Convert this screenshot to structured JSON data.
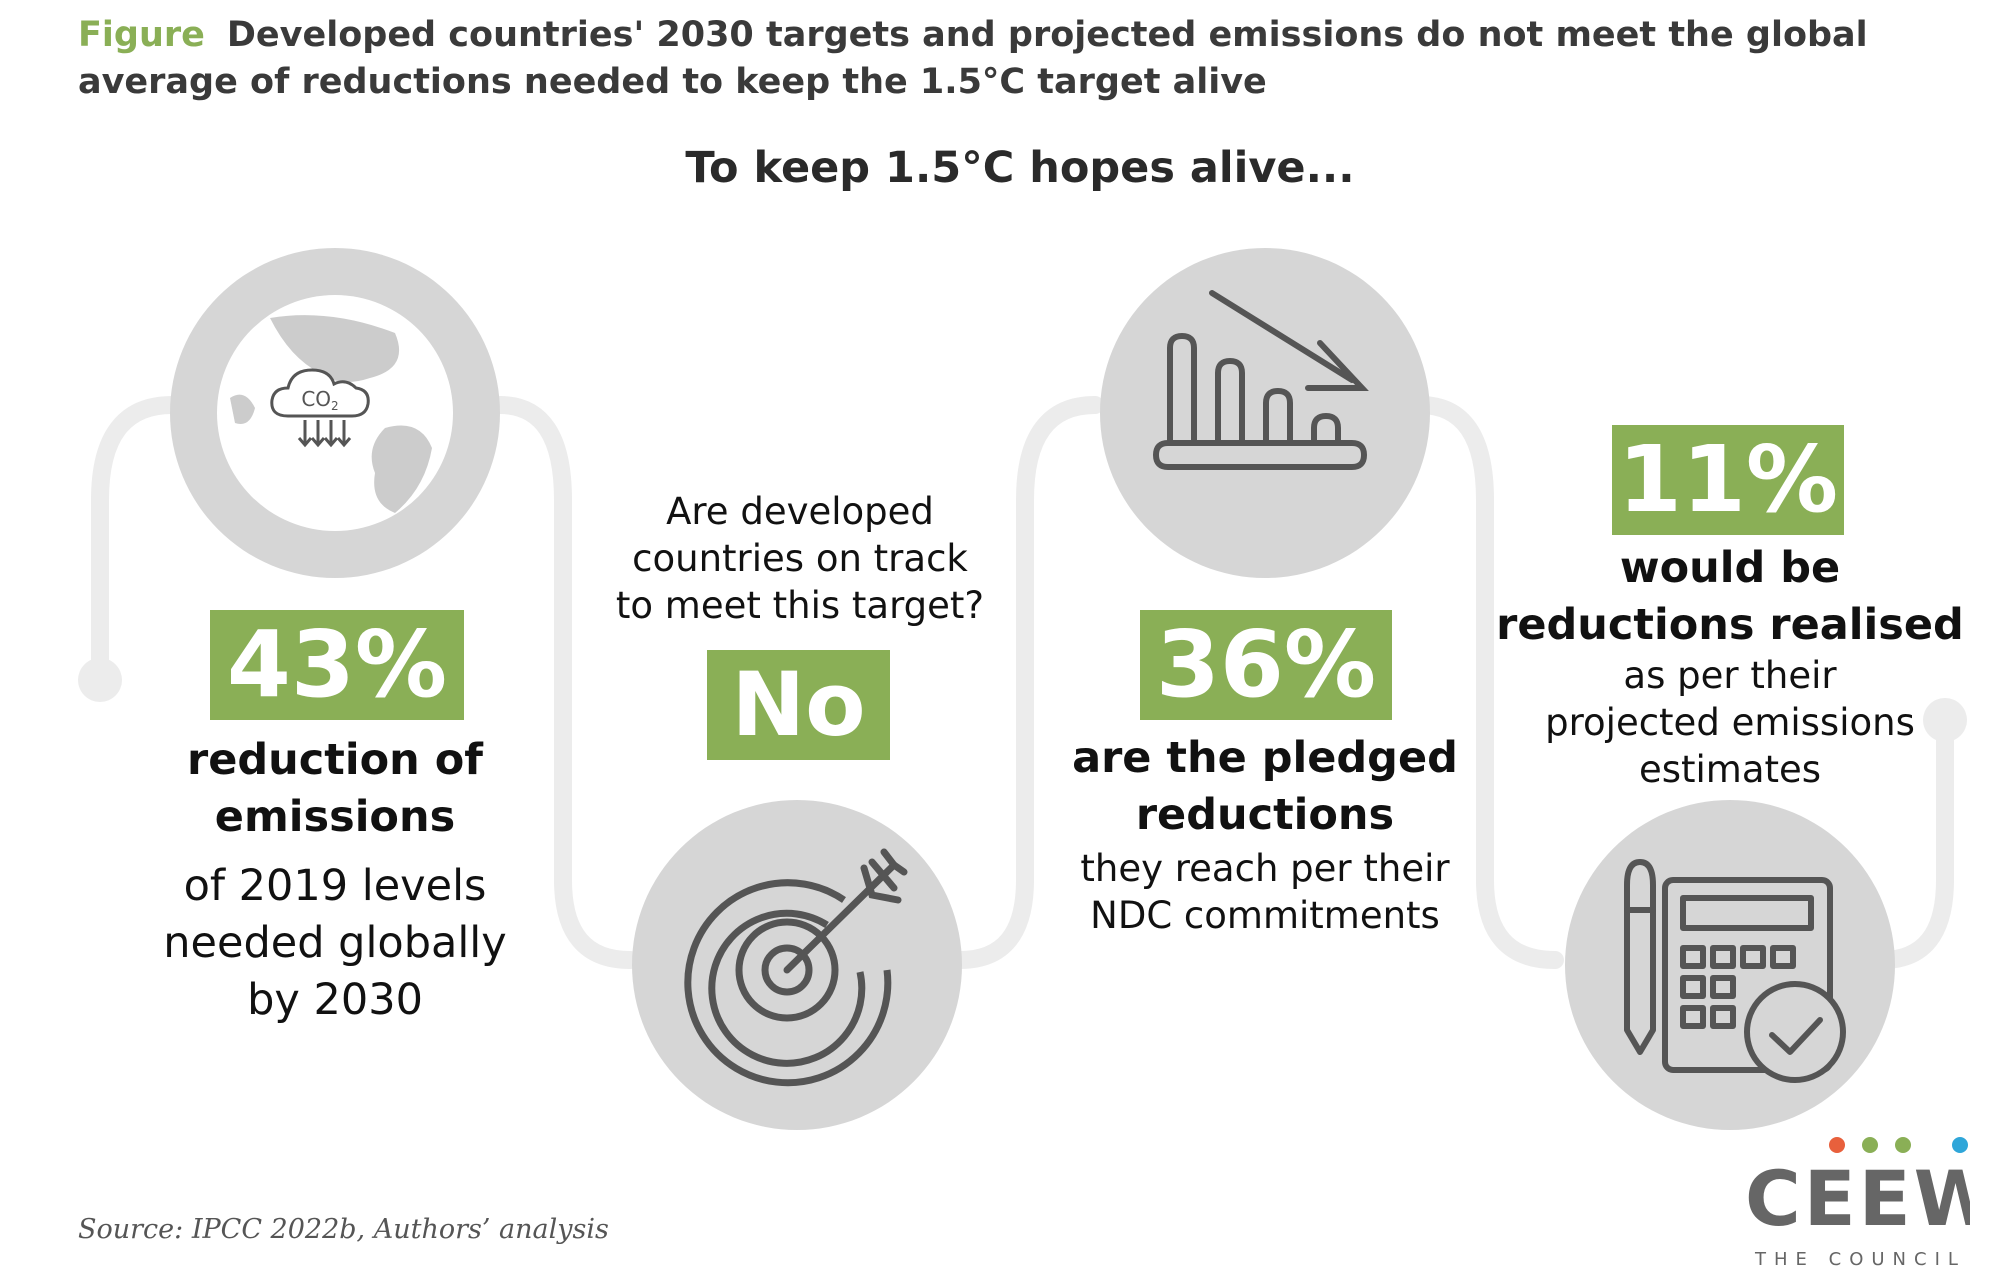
{
  "header": {
    "label": "Figure",
    "title": "Developed countries' 2030 targets and projected emissions do not meet the global average of reductions needed to keep the 1.5°C target alive"
  },
  "headline": "To keep 1.5°C hopes alive...",
  "steps": [
    {
      "badge": "43%",
      "bold_lines": [
        "reduction of",
        "emissions"
      ],
      "plain_lines": [
        "of 2019 levels",
        "needed globally",
        "by 2030"
      ],
      "icon": "globe-co2-icon"
    },
    {
      "question_lines": [
        "Are developed",
        "countries on track",
        "to meet this target?"
      ],
      "badge": "No",
      "icon": "target-arrow-icon"
    },
    {
      "badge": "36%",
      "bold_lines": [
        "are the pledged",
        "reductions"
      ],
      "plain_lines": [
        "they reach per their",
        "NDC commitments"
      ],
      "icon": "declining-bar-chart-icon"
    },
    {
      "badge": "11%",
      "bold_lines": [
        "would be",
        "reductions realised"
      ],
      "plain_lines": [
        "as per their",
        "projected emissions",
        "estimates"
      ],
      "icon": "calculator-check-icon"
    }
  ],
  "source": "Source: IPCC 2022b, Authors’ analysis",
  "logo": {
    "name": "CEEW",
    "tagline": "THE COUNCIL",
    "dot_colors": [
      "#e8603c",
      "#8aaf56",
      "#8aaf56",
      "#2fa6d9"
    ]
  },
  "colors": {
    "accent": "#8aaf56",
    "circle": "#d6d6d6",
    "connector": "#ececec",
    "icon": "#555555"
  }
}
